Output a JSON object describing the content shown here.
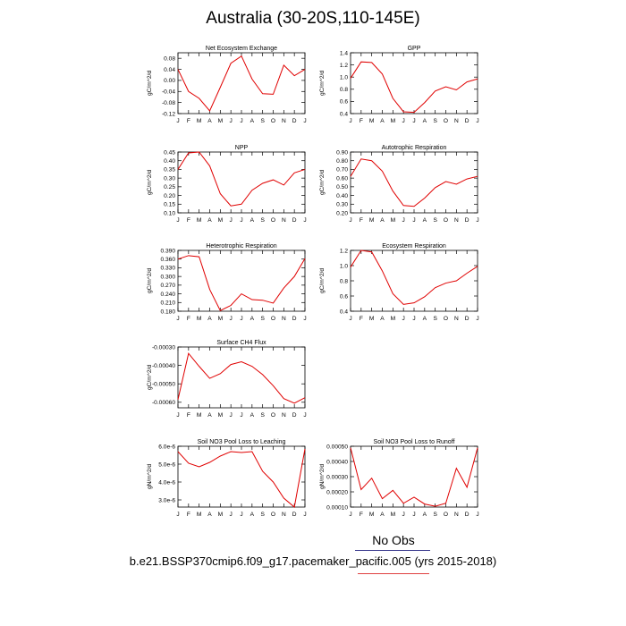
{
  "title": "Australia (30-20S,110-145E)",
  "legend": {
    "label": "No Obs",
    "line_color": "#3b3b8f"
  },
  "case_label": "b.e21.BSSP370cmip6.f09_g17.pacemaker_pacific.005 (yrs 2015-2018)",
  "series_color": "#e00000",
  "chart_data": [
    {
      "type": "line",
      "title": "Net Ecosystem Exchange",
      "ylabel": "gC/m^2/d",
      "categories": [
        "J",
        "F",
        "M",
        "A",
        "M",
        "J",
        "J",
        "A",
        "S",
        "O",
        "N",
        "D",
        "J"
      ],
      "values": [
        0.04,
        -0.04,
        -0.065,
        -0.11,
        -0.025,
        0.062,
        0.088,
        0.005,
        -0.048,
        -0.05,
        0.055,
        0.017,
        0.04
      ],
      "ylim": [
        -0.12,
        0.1
      ],
      "yticks": [
        0.08,
        0.04,
        0.0,
        -0.04,
        -0.08,
        -0.12
      ],
      "ytick_labels": [
        "0.08",
        "0.04",
        "0.00",
        "-0.04",
        "-0.08",
        "-0.12"
      ]
    },
    {
      "type": "line",
      "title": "GPP",
      "ylabel": "gC/m^2/d",
      "categories": [
        "J",
        "F",
        "M",
        "A",
        "M",
        "J",
        "J",
        "A",
        "S",
        "O",
        "N",
        "D",
        "J"
      ],
      "values": [
        0.98,
        1.25,
        1.24,
        1.05,
        0.65,
        0.43,
        0.42,
        0.58,
        0.77,
        0.84,
        0.79,
        0.92,
        0.97
      ],
      "ylim": [
        0.4,
        1.4
      ],
      "yticks": [
        1.4,
        1.2,
        1.0,
        0.8,
        0.6,
        0.4
      ],
      "ytick_labels": [
        "1.4",
        "1.2",
        "1.0",
        "0.8",
        "0.6",
        "0.4"
      ]
    },
    {
      "type": "line",
      "title": "NPP",
      "ylabel": "gC/m^2/d",
      "categories": [
        "J",
        "F",
        "M",
        "A",
        "M",
        "J",
        "J",
        "A",
        "S",
        "O",
        "N",
        "D",
        "J"
      ],
      "values": [
        0.35,
        0.445,
        0.45,
        0.37,
        0.21,
        0.14,
        0.15,
        0.23,
        0.27,
        0.29,
        0.26,
        0.33,
        0.35
      ],
      "ylim": [
        0.1,
        0.45
      ],
      "yticks": [
        0.45,
        0.4,
        0.35,
        0.3,
        0.25,
        0.2,
        0.15,
        0.1
      ],
      "ytick_labels": [
        "0.45",
        "0.40",
        "0.35",
        "0.30",
        "0.25",
        "0.20",
        "0.15",
        "0.10"
      ]
    },
    {
      "type": "line",
      "title": "Autotrophic Respiration",
      "ylabel": "gC/m^2/d",
      "categories": [
        "J",
        "F",
        "M",
        "A",
        "M",
        "J",
        "J",
        "A",
        "S",
        "O",
        "N",
        "D",
        "J"
      ],
      "values": [
        0.62,
        0.82,
        0.8,
        0.68,
        0.45,
        0.285,
        0.275,
        0.37,
        0.49,
        0.56,
        0.53,
        0.59,
        0.62
      ],
      "ylim": [
        0.2,
        0.9
      ],
      "yticks": [
        0.9,
        0.8,
        0.7,
        0.6,
        0.5,
        0.4,
        0.3,
        0.2
      ],
      "ytick_labels": [
        "0.90",
        "0.80",
        "0.70",
        "0.60",
        "0.50",
        "0.40",
        "0.30",
        "0.20"
      ]
    },
    {
      "type": "line",
      "title": "Heterotrophic Respiration",
      "ylabel": "gC/m^2/d",
      "categories": [
        "J",
        "F",
        "M",
        "A",
        "M",
        "J",
        "J",
        "A",
        "S",
        "O",
        "N",
        "D",
        "J"
      ],
      "values": [
        0.36,
        0.372,
        0.368,
        0.255,
        0.182,
        0.2,
        0.24,
        0.22,
        0.218,
        0.208,
        0.26,
        0.3,
        0.362
      ],
      "ylim": [
        0.18,
        0.39
      ],
      "yticks": [
        0.39,
        0.36,
        0.33,
        0.3,
        0.27,
        0.24,
        0.21,
        0.18
      ],
      "ytick_labels": [
        "0.390",
        "0.360",
        "0.330",
        "0.300",
        "0.270",
        "0.240",
        "0.210",
        "0.180"
      ]
    },
    {
      "type": "line",
      "title": "Ecosystem Respiration",
      "ylabel": "gC/m^2/d",
      "categories": [
        "J",
        "F",
        "M",
        "A",
        "M",
        "J",
        "J",
        "A",
        "S",
        "O",
        "N",
        "D",
        "J"
      ],
      "values": [
        0.98,
        1.2,
        1.18,
        0.93,
        0.63,
        0.49,
        0.51,
        0.59,
        0.71,
        0.77,
        0.8,
        0.9,
        0.99
      ],
      "ylim": [
        0.4,
        1.2
      ],
      "yticks": [
        1.2,
        1.0,
        0.8,
        0.6,
        0.4
      ],
      "ytick_labels": [
        "1.2",
        "1.0",
        "0.8",
        "0.6",
        "0.4"
      ]
    },
    {
      "type": "line",
      "title": "Surface CH4 Flux",
      "ylabel": "gC/m^2/d",
      "categories": [
        "J",
        "F",
        "M",
        "A",
        "M",
        "J",
        "J",
        "A",
        "S",
        "O",
        "N",
        "D",
        "J"
      ],
      "values": [
        -0.000585,
        -0.000335,
        -0.000405,
        -0.00047,
        -0.000445,
        -0.000395,
        -0.00038,
        -0.000405,
        -0.00045,
        -0.00051,
        -0.00058,
        -0.000605,
        -0.000575
      ],
      "ylim": [
        -0.00063,
        -0.0003
      ],
      "yticks": [
        -0.0003,
        -0.0004,
        -0.0005,
        -0.0006
      ],
      "ytick_labels": [
        "-0.00030",
        "-0.00040",
        "-0.00050",
        "-0.00060"
      ]
    },
    {
      "type": "line",
      "title": "Soil NO3 Pool Loss to Leaching",
      "ylabel": "gN/m^2/d",
      "categories": [
        "J",
        "F",
        "M",
        "A",
        "M",
        "J",
        "J",
        "A",
        "S",
        "O",
        "N",
        "D",
        "J"
      ],
      "values": [
        5.7e-06,
        5.05e-06,
        4.85e-06,
        5.1e-06,
        5.45e-06,
        5.7e-06,
        5.65e-06,
        5.7e-06,
        4.6e-06,
        4e-06,
        3.1e-06,
        2.6e-06,
        5.85e-06
      ],
      "ylim": [
        2.6e-06,
        6e-06
      ],
      "yticks": [
        6e-06,
        5e-06,
        4e-06,
        3e-06
      ],
      "ytick_labels": [
        "6.0e-6",
        "5.0e-6",
        "4.0e-6",
        "3.0e-6"
      ]
    },
    {
      "type": "line",
      "title": "Soil NO3 Pool Loss to Runoff",
      "ylabel": "gN/m^2/d",
      "categories": [
        "J",
        "F",
        "M",
        "A",
        "M",
        "J",
        "J",
        "A",
        "S",
        "O",
        "N",
        "D",
        "J"
      ],
      "values": [
        0.00049,
        0.000215,
        0.00029,
        0.000155,
        0.00021,
        0.000125,
        0.000165,
        0.00012,
        0.000105,
        0.000125,
        0.000355,
        0.00023,
        0.00049
      ],
      "ylim": [
        0.0001,
        0.0005
      ],
      "yticks": [
        0.0005,
        0.0004,
        0.0003,
        0.0002,
        0.0001
      ],
      "ytick_labels": [
        "0.00050",
        "0.00040",
        "0.00030",
        "0.00020",
        "0.00010"
      ]
    }
  ]
}
